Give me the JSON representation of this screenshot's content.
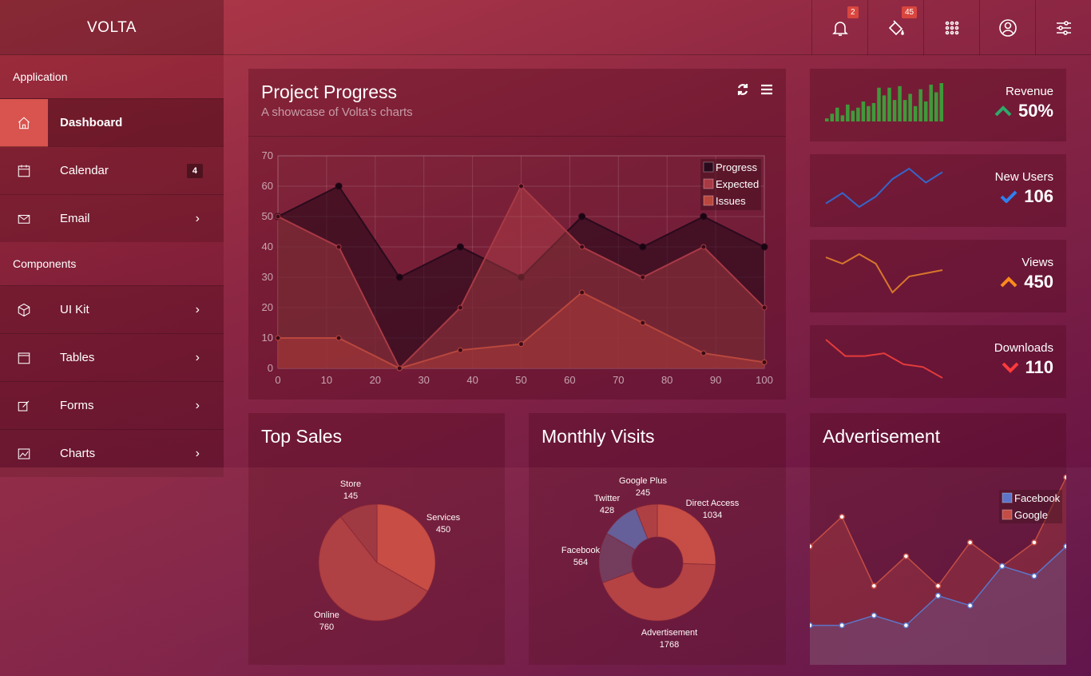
{
  "app": {
    "title": "VOLTA"
  },
  "topbar": {
    "icons": [
      {
        "name": "bell-icon",
        "badge": "2"
      },
      {
        "name": "paint-bucket-icon",
        "badge": "45"
      },
      {
        "name": "apps-grid-icon",
        "badge": ""
      },
      {
        "name": "user-circle-icon",
        "badge": ""
      },
      {
        "name": "sliders-icon",
        "badge": ""
      }
    ]
  },
  "sidebar": {
    "section_application": "Application",
    "section_components": "Components",
    "items": [
      {
        "label": "Dashboard",
        "icon": "home-icon",
        "active": true
      },
      {
        "label": "Calendar",
        "icon": "calendar-icon",
        "count": "4"
      },
      {
        "label": "Email",
        "icon": "envelope-icon",
        "chevron": "›"
      },
      {
        "label": "UI Kit",
        "icon": "cube-icon",
        "chevron": "›"
      },
      {
        "label": "Tables",
        "icon": "table-icon",
        "chevron": "›"
      },
      {
        "label": "Forms",
        "icon": "edit-icon",
        "chevron": "›"
      },
      {
        "label": "Charts",
        "icon": "line-chart-icon",
        "chevron": "›"
      }
    ]
  },
  "project_progress": {
    "title": "Project Progress",
    "subtitle": "A showcase of Volta's charts",
    "chart_data": {
      "type": "area",
      "x": [
        0,
        12.5,
        25,
        37.5,
        50,
        62.5,
        75,
        87.5,
        100
      ],
      "xticks": [
        "0",
        "10",
        "20",
        "30",
        "40",
        "50",
        "60",
        "70",
        "80",
        "90",
        "100"
      ],
      "yticks": [
        "0",
        "10",
        "20",
        "30",
        "40",
        "50",
        "60",
        "70"
      ],
      "xlim": [
        0,
        100
      ],
      "ylim": [
        0,
        70
      ],
      "grid": true,
      "legend_position": "top-right",
      "series": [
        {
          "name": "Progress",
          "color": "#2a0a1c",
          "values": [
            50,
            60,
            30,
            40,
            30,
            50,
            40,
            50,
            40
          ]
        },
        {
          "name": "Expected",
          "color": "#a83a45",
          "values": [
            50,
            40,
            0,
            20,
            60,
            40,
            30,
            40,
            20
          ]
        },
        {
          "name": "Issues",
          "color": "#b8473e",
          "values": [
            10,
            10,
            0,
            6,
            8,
            25,
            15,
            5,
            2
          ]
        }
      ]
    }
  },
  "stats": [
    {
      "label": "Revenue",
      "value": "50%",
      "arrow": "up",
      "arrow_color": "#2eaa6a",
      "spark_color": "#3f9a3a",
      "spark_type": "bar",
      "values": [
        2,
        5,
        9,
        4,
        11,
        7,
        9,
        13,
        10,
        12,
        22,
        17,
        22,
        14,
        23,
        14,
        18,
        10,
        21,
        13,
        24,
        19,
        25
      ]
    },
    {
      "label": "New Users",
      "value": "106",
      "arrow": "check",
      "arrow_color": "#2f80ed",
      "spark_color": "#3466c8",
      "spark_type": "line",
      "values": [
        6,
        9,
        5,
        8,
        13,
        16,
        12,
        15
      ]
    },
    {
      "label": "Views",
      "value": "450",
      "arrow": "up",
      "arrow_color": "#ff8a1c",
      "spark_color": "#d8762c",
      "spark_type": "line",
      "values": [
        14,
        12,
        15,
        12,
        3,
        8,
        9,
        10
      ]
    },
    {
      "label": "Downloads",
      "value": "110",
      "arrow": "down",
      "arrow_color": "#ff3b3b",
      "spark_color": "#e43b3b",
      "spark_type": "line",
      "values": [
        16,
        10,
        10,
        11,
        7,
        6,
        2
      ]
    }
  ],
  "top_sales": {
    "title": "Top Sales",
    "chart_data": {
      "type": "pie",
      "slices": [
        {
          "label": "Services",
          "value": 450
        },
        {
          "label": "Online",
          "value": 760
        },
        {
          "label": "Store",
          "value": 145
        }
      ]
    }
  },
  "monthly_visits": {
    "title": "Monthly Visits",
    "chart_data": {
      "type": "pie",
      "donut": true,
      "slices": [
        {
          "label": "Direct Access",
          "value": 1034
        },
        {
          "label": "Advertisement",
          "value": 1768
        },
        {
          "label": "Facebook",
          "value": 564
        },
        {
          "label": "Twitter",
          "value": 428
        },
        {
          "label": "Google Plus",
          "value": 245
        }
      ]
    }
  },
  "advertisement": {
    "title": "Advertisement",
    "chart_data": {
      "type": "area",
      "legend_position": "top-right",
      "ylim": [
        0,
        100
      ],
      "series": [
        {
          "name": "Facebook",
          "color": "#5470c6",
          "values": [
            20,
            20,
            25,
            20,
            35,
            30,
            50,
            45,
            60
          ]
        },
        {
          "name": "Google",
          "color": "#c0463e",
          "values": [
            60,
            75,
            40,
            55,
            40,
            62,
            50,
            62,
            95
          ]
        }
      ]
    }
  }
}
